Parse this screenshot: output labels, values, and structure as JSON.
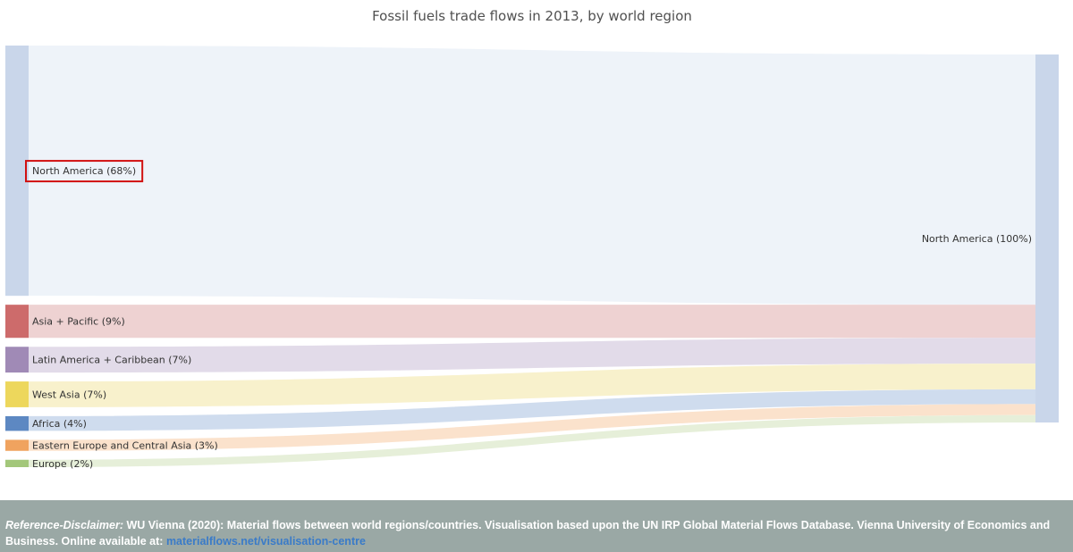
{
  "title": "Fossil fuels trade flows in 2013, by world region",
  "colors": {
    "highlight_box": "#d11111",
    "footer_bg": "#9aa8a5",
    "link": "#3a7bc8"
  },
  "chart_data": {
    "type": "sankey",
    "title": "Fossil fuels trade flows in 2013, by world region",
    "sources": [
      {
        "label": "North America (68%)",
        "value": 68,
        "node_color": "#c9d6ea",
        "flow_color": "#eef3f9"
      },
      {
        "label": "Asia + Pacific (9%)",
        "value": 9,
        "node_color": "#cd6b6b",
        "flow_color": "#eed2d2"
      },
      {
        "label": "Latin America + Caribbean (7%)",
        "value": 7,
        "node_color": "#a08ab6",
        "flow_color": "#e2dbe9"
      },
      {
        "label": "West Asia (7%)",
        "value": 7,
        "node_color": "#edd75c",
        "flow_color": "#f8f1cc"
      },
      {
        "label": "Africa (4%)",
        "value": 4,
        "node_color": "#5d88c2",
        "flow_color": "#cfdcee"
      },
      {
        "label": "Eastern Europe and Central Asia (3%)",
        "value": 3,
        "node_color": "#f0a35f",
        "flow_color": "#fbe2cc"
      },
      {
        "label": "Europe (2%)",
        "value": 2,
        "node_color": "#a3c77a",
        "flow_color": "#e6efd9"
      }
    ],
    "targets": [
      {
        "label": "North America (100%)",
        "value": 100,
        "node_color": "#c9d6ea"
      }
    ],
    "highlighted_source": 0
  },
  "footer": {
    "ref_label": "Reference-Disclaimer:",
    "text": " WU Vienna (2020): Material flows between world regions/countries. Visualisation based upon the UN IRP Global Material Flows Database. Vienna University of Economics and Business. Online available at: ",
    "link_text": "materialflows.net/visualisation-centre"
  }
}
